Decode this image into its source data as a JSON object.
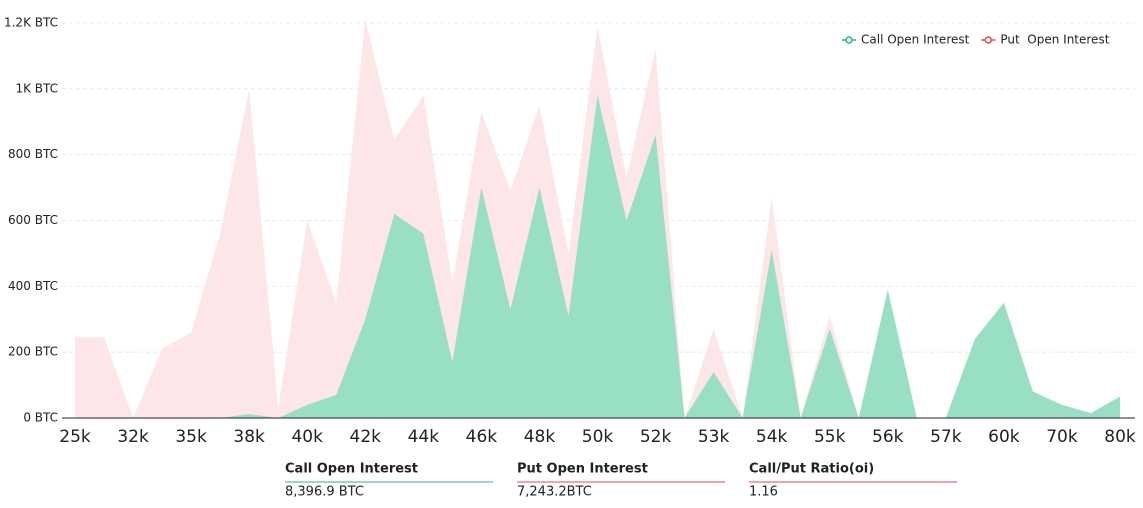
{
  "chart_data": {
    "type": "area",
    "categories": [
      "25k",
      null,
      "32k",
      null,
      "35k",
      null,
      "38k",
      null,
      "40k",
      null,
      "42k",
      null,
      "44k",
      null,
      "46k",
      null,
      "48k",
      null,
      "50k",
      null,
      "52k",
      null,
      "53k",
      null,
      "54k",
      null,
      "55k",
      null,
      "56k",
      null,
      "57k",
      null,
      "60k",
      null,
      "70k",
      null,
      "80k"
    ],
    "series": [
      {
        "name": "Put  Open Interest",
        "color": "#fde6e7",
        "marker_color": "#e0475f",
        "values": [
          245,
          245,
          0,
          210,
          260,
          560,
          1000,
          30,
          600,
          350,
          1210,
          845,
          980,
          410,
          930,
          690,
          950,
          500,
          1190,
          730,
          1120,
          0,
          270,
          0,
          670,
          0,
          310,
          0,
          390,
          0,
          0,
          240,
          350,
          80,
          40,
          15,
          65
        ]
      },
      {
        "name": "Call Open Interest",
        "color": "#98dfc3",
        "marker_color": "#2bb583",
        "values": [
          0,
          0,
          0,
          0,
          0,
          0,
          12,
          0,
          40,
          70,
          300,
          620,
          560,
          170,
          700,
          330,
          700,
          310,
          980,
          600,
          860,
          0,
          140,
          0,
          510,
          0,
          270,
          0,
          390,
          0,
          0,
          240,
          350,
          80,
          40,
          15,
          65
        ]
      }
    ],
    "legend_order": [
      1,
      0
    ],
    "ylim": [
      0,
      1200
    ],
    "yticks": [
      {
        "value": 0,
        "label": "0 BTC"
      },
      {
        "value": 200,
        "label": "200 BTC"
      },
      {
        "value": 400,
        "label": "400 BTC"
      },
      {
        "value": 600,
        "label": "600 BTC"
      },
      {
        "value": 800,
        "label": "800 BTC"
      },
      {
        "value": 1000,
        "label": "1K BTC"
      },
      {
        "value": 1200,
        "label": "1.2K BTC"
      }
    ],
    "grid": true,
    "summary": [
      {
        "label": "Call Open Interest",
        "value": "8,396.9 BTC",
        "color": "#2bb583"
      },
      {
        "label": "Put Open Interest",
        "value": "7,243.2BTC",
        "color": "#e0475f"
      },
      {
        "label": "Call/Put Ratio(oi)",
        "value": "1.16",
        "color": "#e0475f"
      }
    ]
  }
}
